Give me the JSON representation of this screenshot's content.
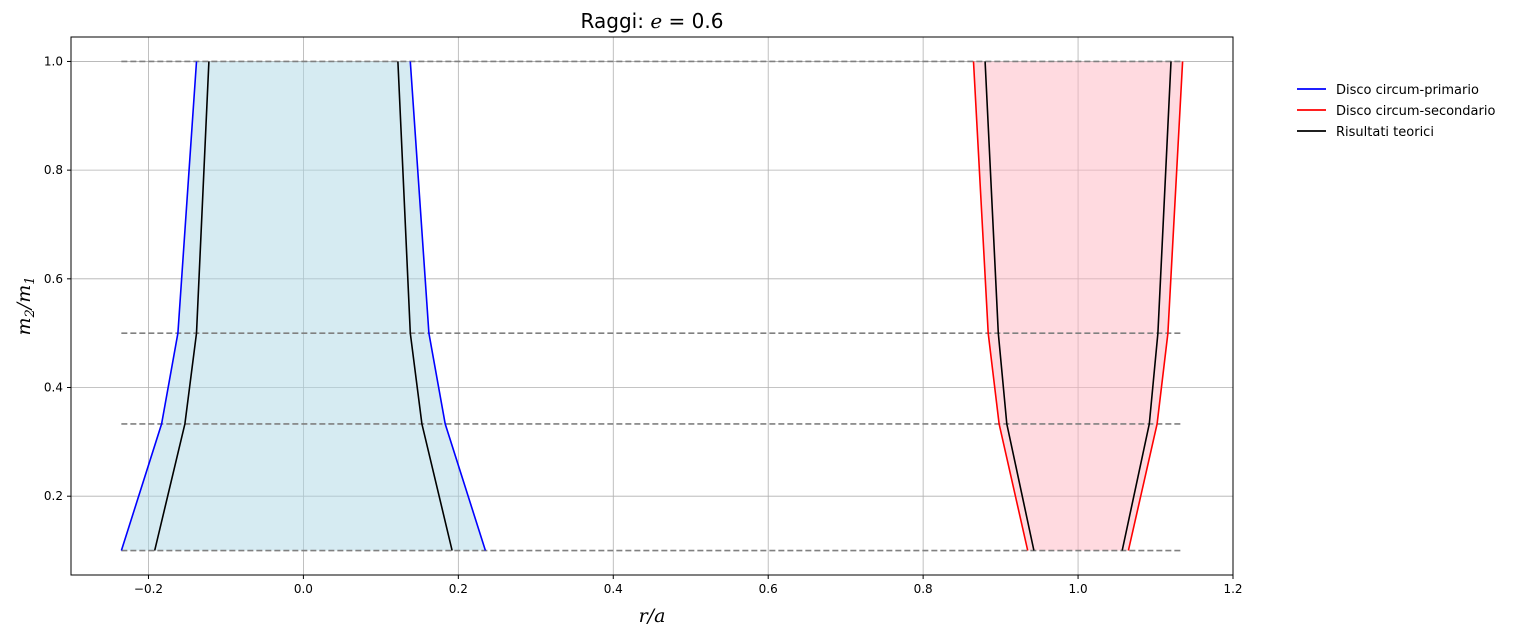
{
  "chart_data": {
    "type": "line",
    "title_prefix": "Raggi: ",
    "title_var": "e",
    "title_suffix": " = 0.6",
    "xlabel": "r/a",
    "ylabel_main": "m",
    "ylabel_sub1": "2",
    "ylabel_slash": "/m",
    "ylabel_sub2": "1",
    "xlim": [
      -0.3,
      1.2
    ],
    "ylim": [
      0.055,
      1.045
    ],
    "xticks": [
      -0.2,
      0.0,
      0.2,
      0.4,
      0.6,
      0.8,
      1.0,
      1.2
    ],
    "xtick_labels": [
      "−0.2",
      "0.0",
      "0.2",
      "0.4",
      "0.6",
      "0.8",
      "1.0",
      "1.2"
    ],
    "yticks": [
      0.2,
      0.4,
      0.6,
      0.8,
      1.0
    ],
    "ytick_labels": [
      "0.2",
      "0.4",
      "0.6",
      "0.8",
      "1.0"
    ],
    "grid": true,
    "legend_position": "outside-top-right",
    "colors": {
      "primario": "#0000ff",
      "secondario": "#ff0000",
      "teorici": "#000000",
      "fill_primario": "#add8e6",
      "fill_secondario": "#ffb6c1",
      "reference": "#808080"
    },
    "reference_lines": {
      "y": [
        0.1,
        0.333,
        0.5,
        1.0
      ],
      "x_range": [
        -0.235,
        1.135
      ]
    },
    "series": [
      {
        "name": "Disco circum-primario",
        "color": "#0000ff",
        "y": [
          0.1,
          0.333,
          0.5,
          1.0
        ],
        "left": [
          -0.235,
          -0.183,
          -0.162,
          -0.138
        ],
        "right": [
          0.235,
          0.183,
          0.162,
          0.138
        ]
      },
      {
        "name": "Disco circum-secondario",
        "color": "#ff0000",
        "y": [
          0.1,
          0.333,
          0.5,
          1.0
        ],
        "left": [
          0.935,
          0.898,
          0.884,
          0.865
        ],
        "right": [
          1.065,
          1.102,
          1.116,
          1.135
        ]
      },
      {
        "name": "Risultati teorici",
        "color": "#000000",
        "y": [
          0.1,
          0.333,
          0.5,
          1.0
        ],
        "left": [
          -0.192,
          -0.153,
          -0.138,
          -0.122
        ],
        "right": [
          0.192,
          0.153,
          0.138,
          0.122
        ],
        "left2": [
          0.943,
          0.908,
          0.897,
          0.88
        ],
        "right2": [
          1.057,
          1.092,
          1.103,
          1.12
        ]
      }
    ],
    "legend": [
      "Disco circum-primario",
      "Disco circum-secondario",
      "Risultati teorici"
    ]
  }
}
